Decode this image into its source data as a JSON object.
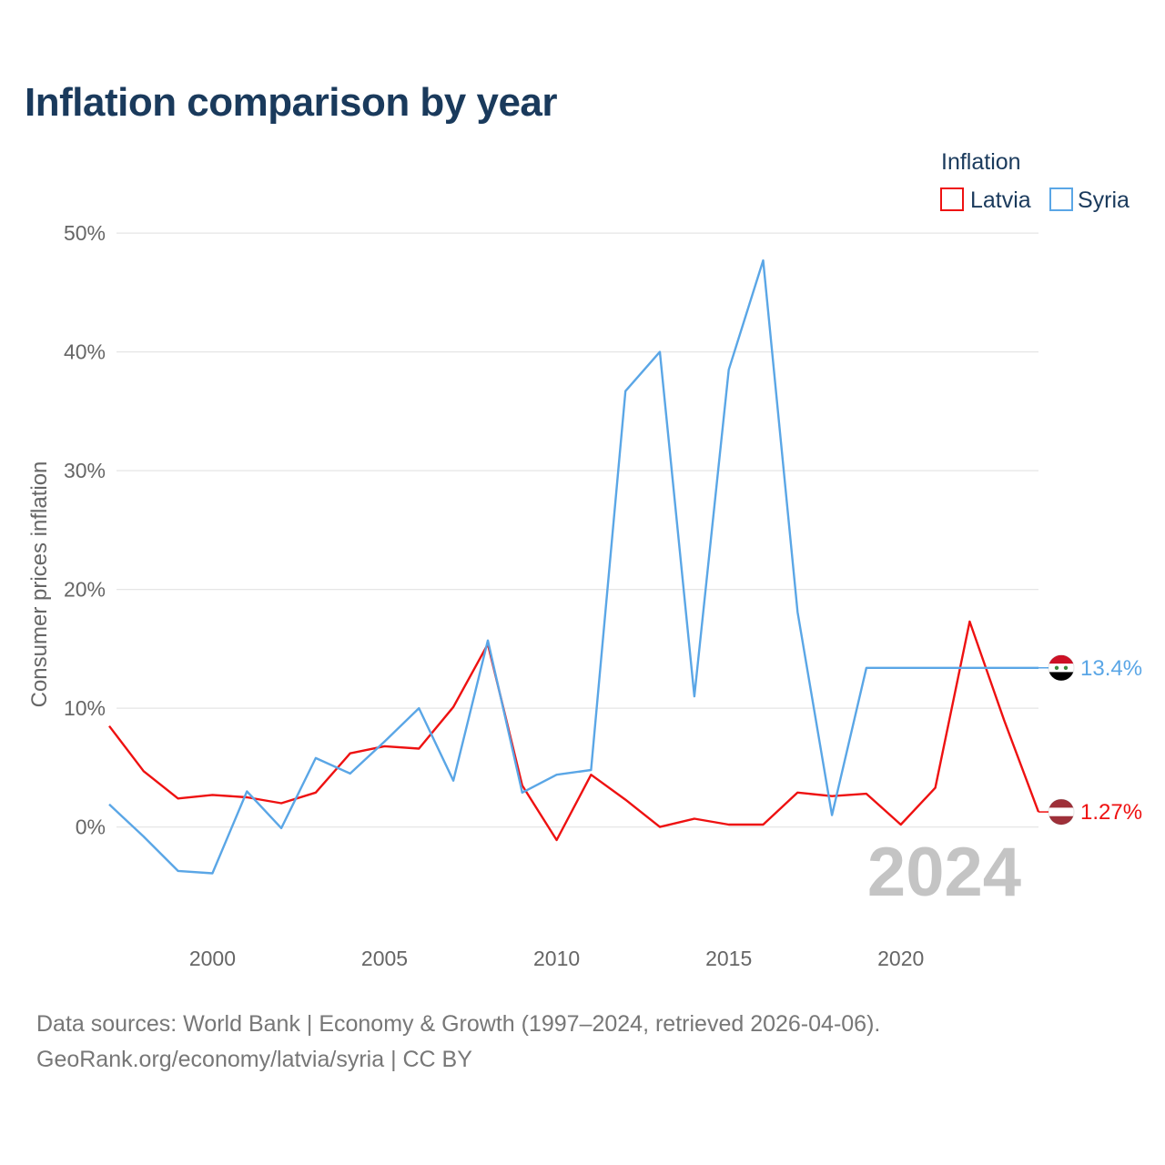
{
  "title": "Inflation comparison by year",
  "legend": {
    "title": "Inflation",
    "items": [
      {
        "name": "Latvia",
        "color": "#ee1111"
      },
      {
        "name": "Syria",
        "color": "#5aa6e6"
      }
    ]
  },
  "footer": {
    "line1": "Data sources: World Bank | Economy & Growth (1997–2024, retrieved 2026-04-06).",
    "line2": "GeoRank.org/economy/latvia/syria | CC BY"
  },
  "year_watermark": "2024",
  "chart_data": {
    "type": "line",
    "title": "Inflation comparison by year",
    "xlabel": "",
    "ylabel": "Consumer prices inflation",
    "xlim": [
      1997,
      2024
    ],
    "ylim": [
      -7,
      52
    ],
    "x_ticks": [
      2000,
      2005,
      2010,
      2015,
      2020
    ],
    "x_tick_labels": [
      "2000",
      "2005",
      "2010",
      "2015",
      "2020"
    ],
    "y_ticks": [
      0,
      10,
      20,
      30,
      40,
      50
    ],
    "y_tick_labels": [
      "0%",
      "10%",
      "20%",
      "30%",
      "40%",
      "50%"
    ],
    "grid": true,
    "legend_position": "top-right",
    "x": [
      1997,
      1998,
      1999,
      2000,
      2001,
      2002,
      2003,
      2004,
      2005,
      2006,
      2007,
      2008,
      2009,
      2010,
      2011,
      2012,
      2013,
      2014,
      2015,
      2016,
      2017,
      2018,
      2019,
      2020,
      2021,
      2022,
      2023,
      2024
    ],
    "series": [
      {
        "name": "Latvia",
        "color": "#ee1111",
        "values": [
          8.5,
          4.7,
          2.4,
          2.7,
          2.5,
          2.0,
          2.9,
          6.2,
          6.8,
          6.6,
          10.1,
          15.4,
          3.5,
          -1.1,
          4.4,
          2.3,
          0.0,
          0.7,
          0.2,
          0.2,
          2.9,
          2.6,
          2.8,
          0.2,
          3.3,
          17.3,
          9.0,
          1.27
        ],
        "end_label": "1.27%",
        "flag_colors": [
          "#9e3039",
          "#ffffff",
          "#9e3039"
        ]
      },
      {
        "name": "Syria",
        "color": "#5aa6e6",
        "values": [
          1.9,
          -0.8,
          -3.7,
          -3.9,
          3.0,
          -0.1,
          5.8,
          4.5,
          7.2,
          10.0,
          3.9,
          15.7,
          2.9,
          4.4,
          4.8,
          36.7,
          40.0,
          11.0,
          38.5,
          47.7,
          18.1,
          1.0,
          13.4,
          13.4,
          13.4,
          13.4,
          13.4,
          13.4
        ],
        "end_label": "13.4%",
        "flag_colors": [
          "#ce1126",
          "#ffffff",
          "#000000"
        ]
      }
    ]
  }
}
